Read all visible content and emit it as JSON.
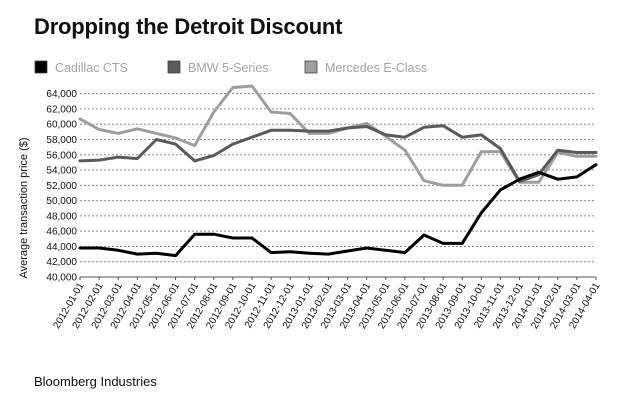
{
  "title": "Dropping the Detroit Discount",
  "source": "Bloomberg Industries",
  "chart_data": {
    "type": "line",
    "title": "Dropping the Detroit Discount",
    "xlabel": "",
    "ylabel": "Average transaction price ($)",
    "ylim": [
      40000,
      65000
    ],
    "ytick_labels": [
      "40,000",
      "42,000",
      "44,000",
      "46,000",
      "48,000",
      "50,000",
      "52,000",
      "54,000",
      "56,000",
      "58,000",
      "60,000",
      "62,000",
      "64,000"
    ],
    "ytick_values": [
      40000,
      42000,
      44000,
      46000,
      48000,
      50000,
      52000,
      54000,
      56000,
      58000,
      60000,
      62000,
      64000
    ],
    "grid": true,
    "legend_position": "top",
    "categories": [
      "2012-01-01",
      "2012-02-01",
      "2012-03-01",
      "2012-04-01",
      "2012-05-01",
      "2012-06-01",
      "2012-07-01",
      "2012-08-01",
      "2012-09-01",
      "2012-10-01",
      "2012-11-01",
      "2012-12-01",
      "2013-01-01",
      "2013-02-01",
      "2013-03-01",
      "2013-04-01",
      "2013-05-01",
      "2013-06-01",
      "2013-07-01",
      "2013-08-01",
      "2013-09-01",
      "2013-10-01",
      "2013-11-01",
      "2013-12-01",
      "2014-01-01",
      "2014-02-01",
      "2014-03-01",
      "2014-04-01"
    ],
    "series": [
      {
        "name": "Cadillac CTS",
        "color": "#000000",
        "values": [
          43800,
          43800,
          43500,
          43000,
          43100,
          42800,
          45600,
          45600,
          45100,
          45100,
          43200,
          43300,
          43100,
          43000,
          43400,
          43800,
          43500,
          43200,
          45500,
          44400,
          44400,
          48400,
          51400,
          52800,
          53700,
          52800,
          53100,
          54700
        ]
      },
      {
        "name": "BMW 5-Series",
        "color": "#5a5a5a",
        "values": [
          55200,
          55300,
          55700,
          55500,
          58000,
          57400,
          55200,
          55900,
          57400,
          58300,
          59200,
          59200,
          59100,
          59100,
          59500,
          59700,
          58600,
          58300,
          59600,
          59800,
          58300,
          58600,
          56800,
          52500,
          53400,
          56600,
          56300,
          56300
        ]
      },
      {
        "name": "Mercedes E-Class",
        "color": "#9e9e9e",
        "values": [
          60700,
          59300,
          58800,
          59400,
          58800,
          58200,
          57200,
          61600,
          64800,
          65000,
          61600,
          61400,
          58800,
          58800,
          59500,
          60100,
          58400,
          56600,
          52600,
          52000,
          52000,
          56400,
          56400,
          52400,
          52400,
          56300,
          55800,
          55800
        ]
      }
    ]
  }
}
